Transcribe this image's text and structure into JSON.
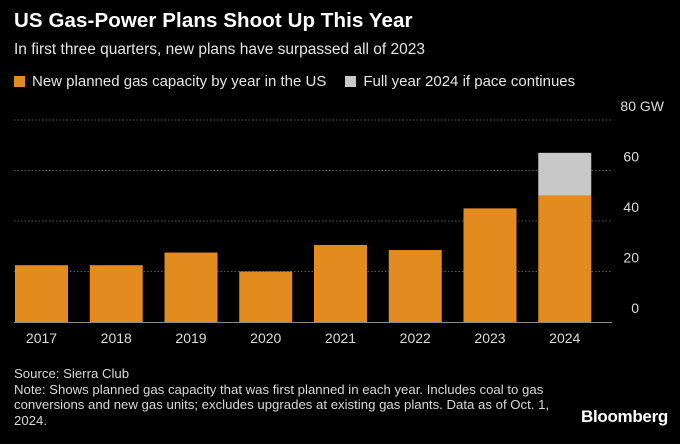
{
  "title": "US Gas-Power Plans Shoot Up This Year",
  "subtitle": "In first three quarters, new plans have surpassed all of 2023",
  "legend": [
    {
      "label": "New planned gas capacity by year in the US",
      "color": "#e38b1e"
    },
    {
      "label": "Full year 2024 if pace continues",
      "color": "#c8c8c8"
    }
  ],
  "chart_data": {
    "type": "bar",
    "stacked": true,
    "categories": [
      "2017",
      "2018",
      "2019",
      "2020",
      "2021",
      "2022",
      "2023",
      "2024"
    ],
    "series": [
      {
        "name": "New planned gas capacity by year in the US",
        "color": "#e38b1e",
        "values": [
          22.5,
          22.5,
          27.5,
          20,
          30.5,
          28.5,
          45,
          50
        ]
      },
      {
        "name": "Full year 2024 if pace continues",
        "color": "#c8c8c8",
        "values": [
          0,
          0,
          0,
          0,
          0,
          0,
          0,
          17
        ]
      }
    ],
    "y_ticks": [
      "0",
      "20",
      "40",
      "60",
      "80 GW"
    ],
    "y_tick_values": [
      0,
      20,
      40,
      60,
      80
    ],
    "ylim": [
      0,
      80
    ],
    "yunit": "GW",
    "grid": true
  },
  "footnote": {
    "source": "Source: Sierra Club",
    "note": "Note: Shows planned gas capacity that was first planned in each year. Includes coal to gas conversions and new gas units; excludes upgrades at existing gas plants. Data as of Oct. 1, 2024."
  },
  "brand": "Bloomberg"
}
